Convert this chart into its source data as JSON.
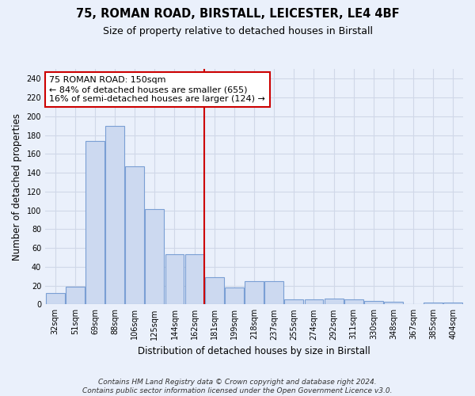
{
  "title1": "75, ROMAN ROAD, BIRSTALL, LEICESTER, LE4 4BF",
  "title2": "Size of property relative to detached houses in Birstall",
  "xlabel": "Distribution of detached houses by size in Birstall",
  "ylabel": "Number of detached properties",
  "categories": [
    "32sqm",
    "51sqm",
    "69sqm",
    "88sqm",
    "106sqm",
    "125sqm",
    "144sqm",
    "162sqm",
    "181sqm",
    "199sqm",
    "218sqm",
    "237sqm",
    "255sqm",
    "274sqm",
    "292sqm",
    "311sqm",
    "330sqm",
    "348sqm",
    "367sqm",
    "385sqm",
    "404sqm"
  ],
  "values": [
    12,
    19,
    174,
    190,
    147,
    101,
    53,
    53,
    29,
    18,
    25,
    25,
    5,
    5,
    6,
    5,
    4,
    3,
    0,
    2,
    2
  ],
  "bar_color": "#ccd9f0",
  "bar_edge_color": "#7a9fd4",
  "vline_x": 7.5,
  "vline_color": "#cc0000",
  "annotation_line1": "75 ROMAN ROAD: 150sqm",
  "annotation_line2": "← 84% of detached houses are smaller (655)",
  "annotation_line3": "16% of semi-detached houses are larger (124) →",
  "annotation_box_color": "white",
  "annotation_box_edge_color": "#cc0000",
  "ylim": [
    0,
    250
  ],
  "yticks": [
    0,
    20,
    40,
    60,
    80,
    100,
    120,
    140,
    160,
    180,
    200,
    220,
    240
  ],
  "background_color": "#eaf0fb",
  "grid_color": "#d0d8e8",
  "footnote": "Contains HM Land Registry data © Crown copyright and database right 2024.\nContains public sector information licensed under the Open Government Licence v3.0.",
  "title1_fontsize": 10.5,
  "title2_fontsize": 9,
  "xlabel_fontsize": 8.5,
  "ylabel_fontsize": 8.5,
  "tick_fontsize": 7,
  "annotation_fontsize": 8,
  "footnote_fontsize": 6.5
}
